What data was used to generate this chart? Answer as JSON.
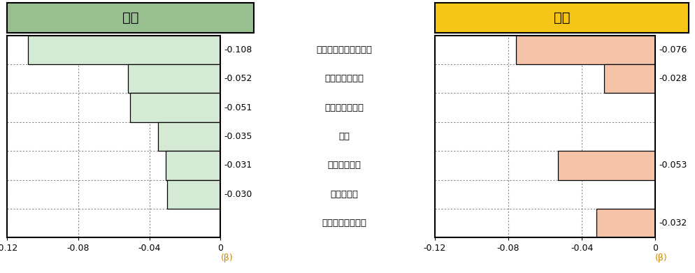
{
  "male_title": "男性",
  "female_title": "女性",
  "male_title_bg": "#97bf8f",
  "female_title_bg": "#f5c518",
  "male_bar_color": "#d4ead4",
  "female_bar_color": "#f5c4a8",
  "categories": [
    "睡眠による休息の不足",
    "運動習慣の欠如",
    "歩行速度が遅い",
    "喫煙",
    "就寝前の夕食",
    "朝食の欠食",
    "食べる速度が速い"
  ],
  "male_values": [
    -0.108,
    -0.052,
    -0.051,
    -0.035,
    -0.031,
    -0.03,
    null
  ],
  "female_values": [
    -0.076,
    -0.028,
    null,
    null,
    -0.053,
    null,
    -0.032
  ],
  "xlim_min": -0.12,
  "xlim_max": 0.0,
  "xticks": [
    -0.12,
    -0.08,
    -0.04,
    0.0
  ],
  "male_labels": [
    "-0.108",
    "-0.052",
    "-0.051",
    "-0.035",
    "-0.031",
    "-0.030",
    ""
  ],
  "female_labels": [
    "-0.076",
    "-0.028",
    "",
    "",
    "-0.053",
    "",
    "-0.032"
  ],
  "grid_color": "#888888",
  "border_color": "#000000",
  "title_fontsize": 14,
  "label_fontsize": 9.5,
  "tick_fontsize": 9,
  "value_fontsize": 9,
  "beta_label": "(β)",
  "male_title_border": "#5a8a5a",
  "female_title_border": "#c8a000"
}
